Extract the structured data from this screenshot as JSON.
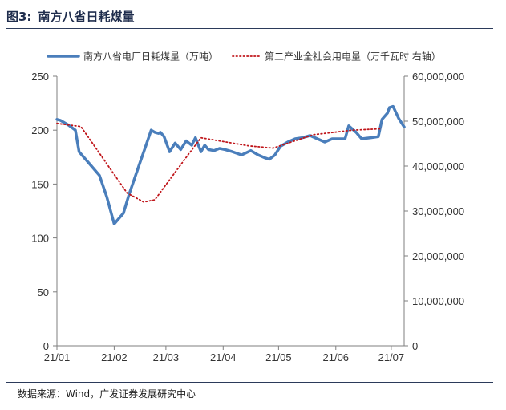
{
  "header": {
    "figure_number": "图3:",
    "title": "南方八省日耗煤量"
  },
  "source": "数据来源：Wind，广发证券发展研究中心",
  "chart_data": {
    "type": "line",
    "title": "南方八省日耗煤量",
    "x_tick_labels": [
      "21/01",
      "21/02",
      "21/03",
      "21/04",
      "21/05",
      "21/06",
      "21/07"
    ],
    "x_tick_dates": [
      "2021-01-01",
      "2021-02-01",
      "2021-03-01",
      "2021-04-01",
      "2021-05-01",
      "2021-06-01",
      "2021-07-01"
    ],
    "x_range": [
      "2021-01-01",
      "2021-07-01"
    ],
    "legend_position": "top",
    "grid": false,
    "axes": {
      "left": {
        "min": 0,
        "max": 250,
        "ticks": [
          "0",
          "50",
          "100",
          "150",
          "200",
          "250"
        ]
      },
      "right": {
        "min": 0,
        "max": 60000000,
        "ticks": [
          "0",
          "10,000,000",
          "20,000,000",
          "30,000,000",
          "40,000,000",
          "50,000,000",
          "60,000,000"
        ]
      }
    },
    "series": [
      {
        "name": "南方八省电厂日耗煤量（万吨）",
        "axis": "left",
        "color": "#4a7ebb",
        "style": "solid",
        "points": [
          [
            "2021-01-01",
            210
          ],
          [
            "2021-01-03",
            209
          ],
          [
            "2021-01-07",
            205
          ],
          [
            "2021-01-11",
            200
          ],
          [
            "2021-01-13",
            180
          ],
          [
            "2021-01-19",
            168
          ],
          [
            "2021-01-24",
            158
          ],
          [
            "2021-01-28",
            138
          ],
          [
            "2021-02-01",
            113
          ],
          [
            "2021-02-06",
            123
          ],
          [
            "2021-02-09",
            140
          ],
          [
            "2021-02-12",
            155
          ],
          [
            "2021-02-15",
            170
          ],
          [
            "2021-02-18",
            185
          ],
          [
            "2021-02-21",
            200
          ],
          [
            "2021-02-23",
            198
          ],
          [
            "2021-02-25",
            197
          ],
          [
            "2021-02-26",
            198
          ],
          [
            "2021-02-28",
            194
          ],
          [
            "2021-03-03",
            180
          ],
          [
            "2021-03-06",
            188
          ],
          [
            "2021-03-09",
            182
          ],
          [
            "2021-03-12",
            190
          ],
          [
            "2021-03-15",
            186
          ],
          [
            "2021-03-17",
            193
          ],
          [
            "2021-03-20",
            180
          ],
          [
            "2021-03-22",
            186
          ],
          [
            "2021-03-24",
            182
          ],
          [
            "2021-03-27",
            181
          ],
          [
            "2021-03-30",
            183
          ],
          [
            "2021-04-02",
            182
          ],
          [
            "2021-04-06",
            180
          ],
          [
            "2021-04-11",
            177
          ],
          [
            "2021-04-16",
            181
          ],
          [
            "2021-04-20",
            177
          ],
          [
            "2021-04-24",
            174
          ],
          [
            "2021-04-26",
            173
          ],
          [
            "2021-04-29",
            177
          ],
          [
            "2021-05-02",
            185
          ],
          [
            "2021-05-06",
            189
          ],
          [
            "2021-05-10",
            192
          ],
          [
            "2021-05-14",
            193
          ],
          [
            "2021-05-18",
            195
          ],
          [
            "2021-05-22",
            192
          ],
          [
            "2021-05-26",
            189
          ],
          [
            "2021-05-30",
            192
          ],
          [
            "2021-06-03",
            192
          ],
          [
            "2021-06-06",
            192
          ],
          [
            "2021-06-08",
            204
          ],
          [
            "2021-06-12",
            198
          ],
          [
            "2021-06-15",
            192
          ],
          [
            "2021-06-20",
            193
          ],
          [
            "2021-06-24",
            194
          ],
          [
            "2021-06-26",
            210
          ],
          [
            "2021-06-29",
            216
          ],
          [
            "2021-06-30",
            221
          ],
          [
            "2021-07-02",
            222
          ],
          [
            "2021-07-05",
            211
          ],
          [
            "2021-07-08",
            203
          ]
        ]
      },
      {
        "name": "第二产业全社会用电量（万千瓦时 右轴）",
        "axis": "right",
        "color": "#c0161b",
        "style": "dotted",
        "points": [
          [
            "2021-01-01",
            49500000
          ],
          [
            "2021-01-14",
            48800000
          ],
          [
            "2021-02-08",
            34000000
          ],
          [
            "2021-02-17",
            32000000
          ],
          [
            "2021-02-23",
            32500000
          ],
          [
            "2021-03-13",
            42500000
          ],
          [
            "2021-03-20",
            46300000
          ],
          [
            "2021-04-15",
            44500000
          ],
          [
            "2021-04-28",
            44000000
          ],
          [
            "2021-05-20",
            47000000
          ],
          [
            "2021-06-10",
            48000000
          ],
          [
            "2021-06-25",
            48300000
          ]
        ]
      }
    ]
  }
}
